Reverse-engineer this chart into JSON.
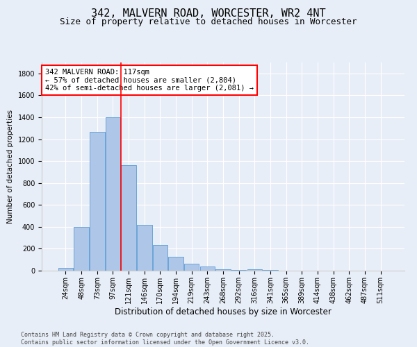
{
  "title": "342, MALVERN ROAD, WORCESTER, WR2 4NT",
  "subtitle": "Size of property relative to detached houses in Worcester",
  "xlabel": "Distribution of detached houses by size in Worcester",
  "ylabel": "Number of detached properties",
  "bar_labels": [
    "24sqm",
    "48sqm",
    "73sqm",
    "97sqm",
    "121sqm",
    "146sqm",
    "170sqm",
    "194sqm",
    "219sqm",
    "243sqm",
    "268sqm",
    "292sqm",
    "316sqm",
    "341sqm",
    "365sqm",
    "389sqm",
    "414sqm",
    "438sqm",
    "462sqm",
    "487sqm",
    "511sqm"
  ],
  "bar_values": [
    25,
    400,
    1265,
    1400,
    960,
    415,
    235,
    125,
    65,
    40,
    15,
    5,
    15,
    5,
    0,
    0,
    0,
    0,
    0,
    0,
    0
  ],
  "bar_color": "#aec6e8",
  "bar_edgecolor": "#5b9bd5",
  "vline_color": "red",
  "vline_x": 3.5,
  "annotation_text": "342 MALVERN ROAD: 117sqm\n← 57% of detached houses are smaller (2,804)\n42% of semi-detached houses are larger (2,081) →",
  "annotation_box_color": "white",
  "annotation_box_edgecolor": "red",
  "ylim": [
    0,
    1900
  ],
  "yticks": [
    0,
    200,
    400,
    600,
    800,
    1000,
    1200,
    1400,
    1600,
    1800
  ],
  "background_color": "#e8eef7",
  "grid_color": "white",
  "footer": "Contains HM Land Registry data © Crown copyright and database right 2025.\nContains public sector information licensed under the Open Government Licence v3.0.",
  "title_fontsize": 11,
  "subtitle_fontsize": 9,
  "xlabel_fontsize": 8.5,
  "ylabel_fontsize": 7.5,
  "tick_fontsize": 7,
  "annotation_fontsize": 7.5,
  "footer_fontsize": 6
}
